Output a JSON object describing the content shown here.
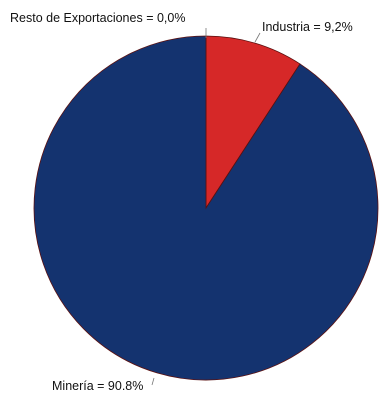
{
  "chart_data": {
    "type": "pie",
    "slices": [
      {
        "label": "Industria",
        "value": 9.2,
        "display": "9,2%",
        "color": "#d62828"
      },
      {
        "label": "Minería",
        "value": 90.8,
        "display": "90.8%",
        "color": "#14336f"
      },
      {
        "label": "Resto de Exportaciones",
        "value": 0.0,
        "display": "0,0%",
        "color": "#2f7d32"
      }
    ],
    "legend": "none"
  },
  "labels": {
    "industria": "Industria =  9,2%",
    "mineria": "Minería = 90.8%",
    "resto": "Resto de Exportaciones =  0,0%"
  }
}
